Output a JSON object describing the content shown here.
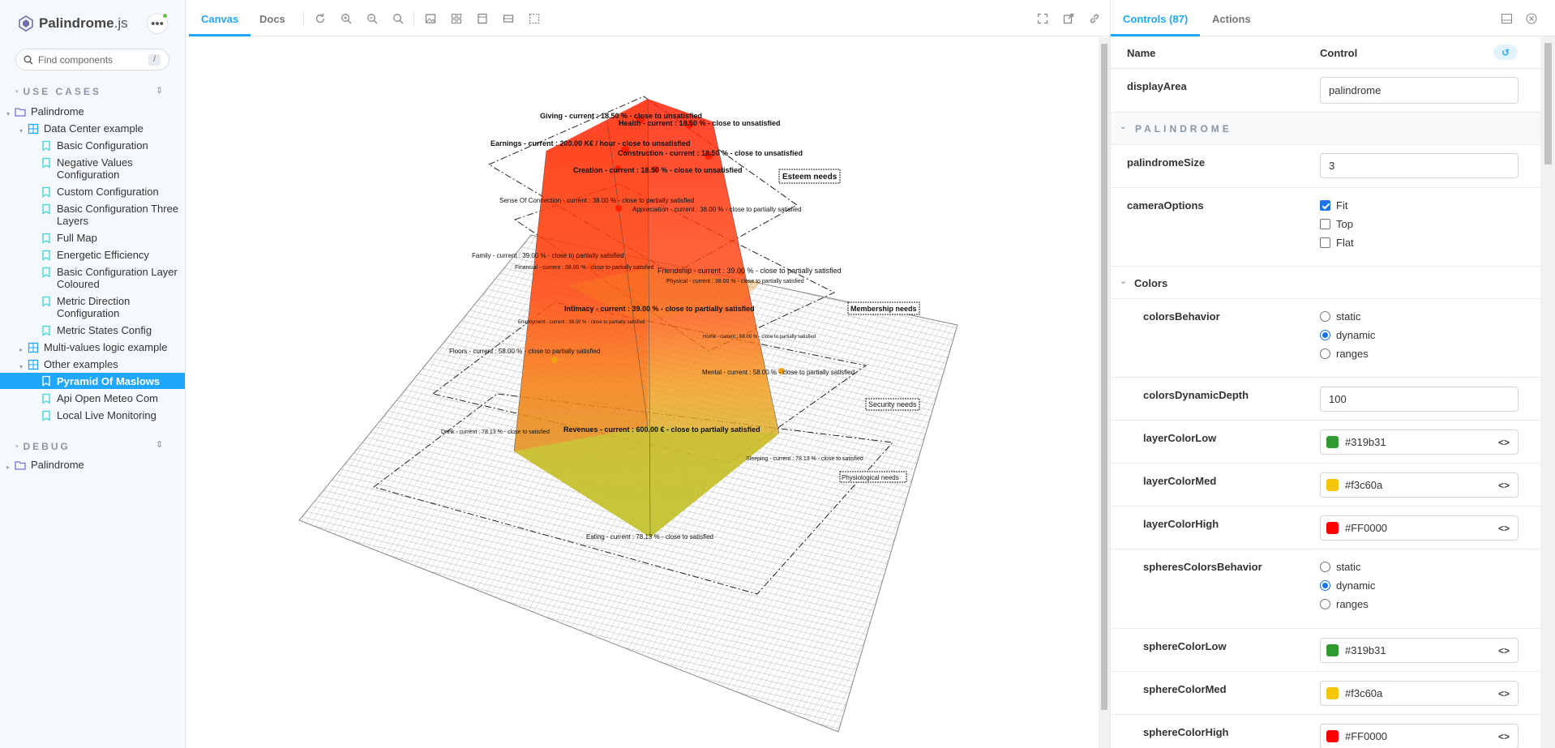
{
  "app": {
    "name_prefix": "Palindrome",
    "name_suffix": ".js"
  },
  "sidebar": {
    "search_placeholder": "Find components",
    "search_shortcut": "/",
    "use_cases_title": "USE CASES",
    "debug_title": "DEBUG",
    "tree": [
      {
        "label": "Palindrome"
      },
      {
        "label": "Data Center example"
      },
      {
        "label": "Basic Configuration"
      },
      {
        "label": "Negative Values Configuration"
      },
      {
        "label": "Custom Configuration"
      },
      {
        "label": "Basic Configuration Three Layers"
      },
      {
        "label": "Full Map"
      },
      {
        "label": "Energetic Efficiency"
      },
      {
        "label": "Basic Configuration Layer Coloured"
      },
      {
        "label": "Metric Direction Configuration"
      },
      {
        "label": "Metric States Config"
      },
      {
        "label": "Multi-values logic example"
      },
      {
        "label": "Other examples"
      },
      {
        "label": "Pyramid Of Maslows"
      },
      {
        "label": "Api Open Meteo Com"
      },
      {
        "label": "Local Live Monitoring"
      }
    ],
    "debug_tree": [
      {
        "label": "Palindrome"
      }
    ]
  },
  "toolbar": {
    "tab_canvas": "Canvas",
    "tab_docs": "Docs"
  },
  "panel": {
    "tab_controls": "Controls (87)",
    "tab_actions": "Actions",
    "col_name": "Name",
    "col_control": "Control",
    "group_palindrome": "PALINDROME",
    "group_colors": "Colors",
    "rows": {
      "displayArea": {
        "name": "displayArea",
        "value": "palindrome"
      },
      "palindromeSize": {
        "name": "palindromeSize",
        "value": "3"
      },
      "cameraOptions": {
        "name": "cameraOptions",
        "options": [
          "Fit",
          "Top",
          "Flat"
        ],
        "checked": [
          "Fit"
        ]
      },
      "colorsBehavior": {
        "name": "colorsBehavior",
        "options": [
          "static",
          "dynamic",
          "ranges"
        ],
        "selected": "dynamic"
      },
      "colorsDynamicDepth": {
        "name": "colorsDynamicDepth",
        "value": "100"
      },
      "layerColorLow": {
        "name": "layerColorLow",
        "value": "#319b31",
        "color": "#319b31"
      },
      "layerColorMed": {
        "name": "layerColorMed",
        "value": "#f3c60a",
        "color": "#f3c60a"
      },
      "layerColorHigh": {
        "name": "layerColorHigh",
        "value": "#FF0000",
        "color": "#FF0000"
      },
      "spheresColorsBehavior": {
        "name": "spheresColorsBehavior",
        "options": [
          "static",
          "dynamic",
          "ranges"
        ],
        "selected": "dynamic"
      },
      "sphereColorLow": {
        "name": "sphereColorLow",
        "value": "#319b31",
        "color": "#319b31"
      },
      "sphereColorMed": {
        "name": "sphereColorMed",
        "value": "#f3c60a",
        "color": "#f3c60a"
      },
      "sphereColorHigh": {
        "name": "sphereColorHigh",
        "value": "#FF0000",
        "color": "#FF0000"
      }
    }
  },
  "canvas_labels": {
    "giving": "Giving - current : 18.50 % - close to unsatisfied",
    "health": "Health - current : 18.50 % - close to unsatisfied",
    "earnings": "Earnings - current : 200.00 K€ / hour - close to unsatisfied",
    "construction": "Construction - current : 18.50 % - close to unsatisfied",
    "creation": "Creation - current : 18.50 % - close to unsatisfied",
    "esteem": "Esteem needs",
    "sense": "Sense Of Connection - current : 38.00 % - close to partially satisfied",
    "appreciation": "Appreciation - current : 38.00 % - close to partially satisfied",
    "family": "Family - current : 39.00 % - close to partially satisfied",
    "financial": "Financial - current : 38.00 % - close to partially satisfied",
    "friendship": "Friendship - current : 39.00 % - close to partially satisfied",
    "physical": "Physical - current : 38.00 % - close to partially satisfied",
    "membership": "Membership needs",
    "intimacy": "Intimacy - current : 39.00 % - close to partially satisfied",
    "employment": "Employment - current : 38.00 % - close to partially satisfied",
    "home": "Home - current : 58.00 % - close to partially satisfied",
    "floors": "Floors - current : 58.00 % - close to partially satisfied",
    "mental": "Mental - current : 58.00 % - close to partially satisfied",
    "security": "Security needs",
    "drink": "Drink - current : 78.13 % - close to satisfied",
    "revenues": "Revenues - current : 600.00 € - close to partially satisfied",
    "sleeping": "Sleeping - current : 78.13 % - close to satisfied",
    "physiological": "Physiological needs",
    "eating": "Eating - current : 78.13 % - close to satisfied"
  },
  "colors": {
    "accent": "#1ea7fd",
    "low": "#319b31",
    "med": "#f3c60a",
    "high": "#FF0000"
  }
}
